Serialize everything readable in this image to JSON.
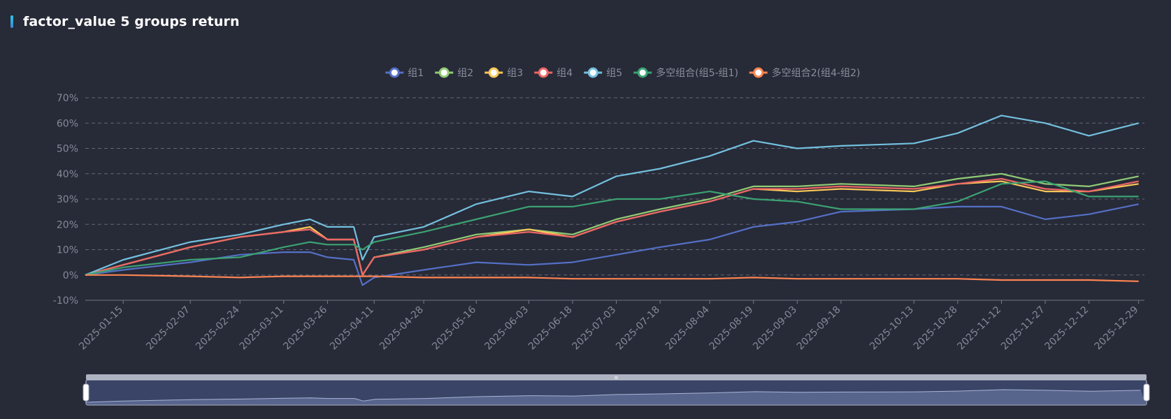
{
  "header": {
    "title": "factor_value 5 groups return"
  },
  "colors": {
    "background": "#272a37",
    "grid": "#787d8c",
    "axis_text": "#858a99",
    "legend_text": "#8a8f9d"
  },
  "chart_data": {
    "type": "line",
    "title": "factor_value 5 groups return",
    "xlabel": "",
    "ylabel": "",
    "ylim": [
      -0.1,
      0.7
    ],
    "y_ticks": [
      -0.1,
      0.0,
      0.1,
      0.2,
      0.3,
      0.4,
      0.5,
      0.6,
      0.7
    ],
    "y_tick_labels": [
      "-10%",
      "0%",
      "10%",
      "20%",
      "30%",
      "40%",
      "50%",
      "60%",
      "70%"
    ],
    "x_tick_labels": [
      "2025-01-15",
      "2025-02-07",
      "2025-02-24",
      "2025-03-11",
      "2025-03-26",
      "2025-04-11",
      "2025-04-28",
      "2025-05-16",
      "2025-06-03",
      "2025-06-18",
      "2025-07-03",
      "2025-07-18",
      "2025-08-04",
      "2025-08-19",
      "2025-09-03",
      "2025-09-18",
      "2025-10-13",
      "2025-10-28",
      "2025-11-12",
      "2025-11-27",
      "2025-12-12",
      "2025-12-29"
    ],
    "x_range": [
      "2025-01-02",
      "2025-12-31"
    ],
    "grid": true,
    "legend_position": "top-center",
    "data_zoom": {
      "start_percent": 0,
      "end_percent": 100
    },
    "series": [
      {
        "name": "组1",
        "color": "#5470c6",
        "points": [
          [
            "2025-01-02",
            0.0
          ],
          [
            "2025-01-15",
            0.02
          ],
          [
            "2025-02-07",
            0.05
          ],
          [
            "2025-02-24",
            0.08
          ],
          [
            "2025-03-11",
            0.09
          ],
          [
            "2025-03-20",
            0.09
          ],
          [
            "2025-03-26",
            0.07
          ],
          [
            "2025-04-04",
            0.06
          ],
          [
            "2025-04-07",
            -0.04
          ],
          [
            "2025-04-11",
            -0.01
          ],
          [
            "2025-04-28",
            0.02
          ],
          [
            "2025-05-16",
            0.05
          ],
          [
            "2025-06-03",
            0.04
          ],
          [
            "2025-06-18",
            0.05
          ],
          [
            "2025-07-03",
            0.08
          ],
          [
            "2025-07-18",
            0.11
          ],
          [
            "2025-08-04",
            0.14
          ],
          [
            "2025-08-19",
            0.19
          ],
          [
            "2025-09-03",
            0.21
          ],
          [
            "2025-09-18",
            0.25
          ],
          [
            "2025-10-13",
            0.26
          ],
          [
            "2025-10-28",
            0.27
          ],
          [
            "2025-11-12",
            0.27
          ],
          [
            "2025-11-27",
            0.22
          ],
          [
            "2025-12-12",
            0.24
          ],
          [
            "2025-12-29",
            0.28
          ]
        ]
      },
      {
        "name": "组2",
        "color": "#91cc75",
        "points": [
          [
            "2025-01-02",
            0.0
          ],
          [
            "2025-01-15",
            0.04
          ],
          [
            "2025-02-07",
            0.11
          ],
          [
            "2025-02-24",
            0.15
          ],
          [
            "2025-03-11",
            0.17
          ],
          [
            "2025-03-20",
            0.19
          ],
          [
            "2025-03-26",
            0.14
          ],
          [
            "2025-04-04",
            0.14
          ],
          [
            "2025-04-07",
            0.0
          ],
          [
            "2025-04-11",
            0.07
          ],
          [
            "2025-04-28",
            0.11
          ],
          [
            "2025-05-16",
            0.16
          ],
          [
            "2025-06-03",
            0.18
          ],
          [
            "2025-06-18",
            0.16
          ],
          [
            "2025-07-03",
            0.22
          ],
          [
            "2025-07-18",
            0.26
          ],
          [
            "2025-08-04",
            0.3
          ],
          [
            "2025-08-19",
            0.35
          ],
          [
            "2025-09-03",
            0.35
          ],
          [
            "2025-09-18",
            0.36
          ],
          [
            "2025-10-13",
            0.35
          ],
          [
            "2025-10-28",
            0.38
          ],
          [
            "2025-11-12",
            0.4
          ],
          [
            "2025-11-27",
            0.36
          ],
          [
            "2025-12-12",
            0.35
          ],
          [
            "2025-12-29",
            0.39
          ]
        ]
      },
      {
        "name": "组3",
        "color": "#fac858",
        "points": [
          [
            "2025-01-02",
            0.0
          ],
          [
            "2025-01-15",
            0.04
          ],
          [
            "2025-02-07",
            0.11
          ],
          [
            "2025-02-24",
            0.15
          ],
          [
            "2025-03-11",
            0.17
          ],
          [
            "2025-03-20",
            0.19
          ],
          [
            "2025-03-26",
            0.14
          ],
          [
            "2025-04-04",
            0.14
          ],
          [
            "2025-04-07",
            0.0
          ],
          [
            "2025-04-11",
            0.07
          ],
          [
            "2025-04-28",
            0.1
          ],
          [
            "2025-05-16",
            0.15
          ],
          [
            "2025-06-03",
            0.18
          ],
          [
            "2025-06-18",
            0.15
          ],
          [
            "2025-07-03",
            0.21
          ],
          [
            "2025-07-18",
            0.25
          ],
          [
            "2025-08-04",
            0.29
          ],
          [
            "2025-08-19",
            0.34
          ],
          [
            "2025-09-03",
            0.33
          ],
          [
            "2025-09-18",
            0.34
          ],
          [
            "2025-10-13",
            0.33
          ],
          [
            "2025-10-28",
            0.36
          ],
          [
            "2025-11-12",
            0.37
          ],
          [
            "2025-11-27",
            0.33
          ],
          [
            "2025-12-12",
            0.33
          ],
          [
            "2025-12-29",
            0.36
          ]
        ]
      },
      {
        "name": "组4",
        "color": "#ee6666",
        "points": [
          [
            "2025-01-02",
            0.0
          ],
          [
            "2025-01-15",
            0.04
          ],
          [
            "2025-02-07",
            0.11
          ],
          [
            "2025-02-24",
            0.15
          ],
          [
            "2025-03-11",
            0.17
          ],
          [
            "2025-03-20",
            0.18
          ],
          [
            "2025-03-26",
            0.14
          ],
          [
            "2025-04-04",
            0.14
          ],
          [
            "2025-04-07",
            0.0
          ],
          [
            "2025-04-11",
            0.07
          ],
          [
            "2025-04-28",
            0.1
          ],
          [
            "2025-05-16",
            0.15
          ],
          [
            "2025-06-03",
            0.17
          ],
          [
            "2025-06-18",
            0.15
          ],
          [
            "2025-07-03",
            0.21
          ],
          [
            "2025-07-18",
            0.25
          ],
          [
            "2025-08-04",
            0.29
          ],
          [
            "2025-08-19",
            0.34
          ],
          [
            "2025-09-03",
            0.34
          ],
          [
            "2025-09-18",
            0.35
          ],
          [
            "2025-10-13",
            0.34
          ],
          [
            "2025-10-28",
            0.36
          ],
          [
            "2025-11-12",
            0.38
          ],
          [
            "2025-11-27",
            0.34
          ],
          [
            "2025-12-12",
            0.33
          ],
          [
            "2025-12-29",
            0.37
          ]
        ]
      },
      {
        "name": "组5",
        "color": "#73c0de",
        "points": [
          [
            "2025-01-02",
            0.0
          ],
          [
            "2025-01-15",
            0.06
          ],
          [
            "2025-02-07",
            0.13
          ],
          [
            "2025-02-24",
            0.16
          ],
          [
            "2025-03-11",
            0.2
          ],
          [
            "2025-03-20",
            0.22
          ],
          [
            "2025-03-26",
            0.19
          ],
          [
            "2025-04-04",
            0.19
          ],
          [
            "2025-04-07",
            0.06
          ],
          [
            "2025-04-11",
            0.15
          ],
          [
            "2025-04-28",
            0.19
          ],
          [
            "2025-05-16",
            0.28
          ],
          [
            "2025-06-03",
            0.33
          ],
          [
            "2025-06-18",
            0.31
          ],
          [
            "2025-07-03",
            0.39
          ],
          [
            "2025-07-18",
            0.42
          ],
          [
            "2025-08-04",
            0.47
          ],
          [
            "2025-08-19",
            0.53
          ],
          [
            "2025-09-03",
            0.5
          ],
          [
            "2025-09-18",
            0.51
          ],
          [
            "2025-10-13",
            0.52
          ],
          [
            "2025-10-28",
            0.56
          ],
          [
            "2025-11-12",
            0.63
          ],
          [
            "2025-11-27",
            0.6
          ],
          [
            "2025-12-12",
            0.55
          ],
          [
            "2025-12-29",
            0.6
          ]
        ]
      },
      {
        "name": "多空组合(组5-组1)",
        "color": "#3ba272",
        "points": [
          [
            "2025-01-02",
            0.0
          ],
          [
            "2025-01-15",
            0.03
          ],
          [
            "2025-02-07",
            0.06
          ],
          [
            "2025-02-24",
            0.07
          ],
          [
            "2025-03-11",
            0.11
          ],
          [
            "2025-03-20",
            0.13
          ],
          [
            "2025-03-26",
            0.12
          ],
          [
            "2025-04-04",
            0.12
          ],
          [
            "2025-04-07",
            0.1
          ],
          [
            "2025-04-11",
            0.13
          ],
          [
            "2025-04-28",
            0.17
          ],
          [
            "2025-05-16",
            0.22
          ],
          [
            "2025-06-03",
            0.27
          ],
          [
            "2025-06-18",
            0.27
          ],
          [
            "2025-07-03",
            0.3
          ],
          [
            "2025-07-18",
            0.3
          ],
          [
            "2025-08-04",
            0.33
          ],
          [
            "2025-08-19",
            0.3
          ],
          [
            "2025-09-03",
            0.29
          ],
          [
            "2025-09-18",
            0.26
          ],
          [
            "2025-10-13",
            0.26
          ],
          [
            "2025-10-28",
            0.29
          ],
          [
            "2025-11-12",
            0.36
          ],
          [
            "2025-11-27",
            0.37
          ],
          [
            "2025-12-12",
            0.31
          ],
          [
            "2025-12-29",
            0.31
          ]
        ]
      },
      {
        "name": "多空组合2(组4-组2)",
        "color": "#fc8452",
        "points": [
          [
            "2025-01-02",
            0.0
          ],
          [
            "2025-01-15",
            0.0
          ],
          [
            "2025-02-07",
            -0.005
          ],
          [
            "2025-02-24",
            -0.01
          ],
          [
            "2025-03-11",
            -0.005
          ],
          [
            "2025-03-26",
            -0.005
          ],
          [
            "2025-04-11",
            -0.005
          ],
          [
            "2025-04-28",
            -0.01
          ],
          [
            "2025-05-16",
            -0.01
          ],
          [
            "2025-06-03",
            -0.01
          ],
          [
            "2025-06-18",
            -0.015
          ],
          [
            "2025-07-03",
            -0.015
          ],
          [
            "2025-07-18",
            -0.015
          ],
          [
            "2025-08-04",
            -0.015
          ],
          [
            "2025-08-19",
            -0.01
          ],
          [
            "2025-09-03",
            -0.015
          ],
          [
            "2025-09-18",
            -0.015
          ],
          [
            "2025-10-13",
            -0.015
          ],
          [
            "2025-10-28",
            -0.015
          ],
          [
            "2025-11-12",
            -0.02
          ],
          [
            "2025-11-27",
            -0.02
          ],
          [
            "2025-12-12",
            -0.02
          ],
          [
            "2025-12-29",
            -0.025
          ]
        ]
      }
    ]
  }
}
